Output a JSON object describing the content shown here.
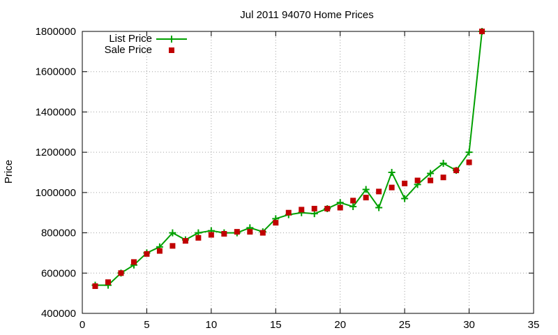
{
  "chart_data": {
    "type": "line",
    "title": "Jul 2011 94070 Home Prices",
    "xlabel": "",
    "ylabel": "Price",
    "xlim": [
      0,
      35
    ],
    "ylim": [
      400000,
      1800000
    ],
    "xticks": [
      0,
      5,
      10,
      15,
      20,
      25,
      30,
      35
    ],
    "yticks": [
      400000,
      600000,
      800000,
      1000000,
      1200000,
      1400000,
      1600000,
      1800000
    ],
    "grid": true,
    "legend": "top-left",
    "series": [
      {
        "name": "List Price",
        "style": "line-plus",
        "color": "#00a000",
        "x": [
          1,
          2,
          3,
          4,
          5,
          6,
          7,
          8,
          9,
          10,
          11,
          12,
          13,
          14,
          15,
          16,
          17,
          18,
          19,
          20,
          21,
          22,
          23,
          24,
          25,
          26,
          27,
          28,
          29,
          30,
          31
        ],
        "y": [
          540000,
          540000,
          600000,
          640000,
          700000,
          730000,
          800000,
          765000,
          800000,
          810000,
          800000,
          800000,
          825000,
          805000,
          870000,
          890000,
          900000,
          895000,
          920000,
          950000,
          930000,
          1015000,
          925000,
          1100000,
          970000,
          1040000,
          1095000,
          1145000,
          1110000,
          1200000,
          1800000
        ]
      },
      {
        "name": "Sale Price",
        "style": "square",
        "color": "#c00000",
        "x": [
          1,
          2,
          3,
          4,
          5,
          6,
          7,
          8,
          9,
          10,
          11,
          12,
          13,
          14,
          15,
          16,
          17,
          18,
          19,
          20,
          21,
          22,
          23,
          24,
          25,
          26,
          27,
          28,
          29,
          30,
          31
        ],
        "y": [
          535000,
          555000,
          600000,
          655000,
          695000,
          710000,
          735000,
          760000,
          775000,
          790000,
          795000,
          805000,
          805000,
          800000,
          850000,
          900000,
          915000,
          920000,
          920000,
          925000,
          960000,
          975000,
          1005000,
          1025000,
          1045000,
          1060000,
          1060000,
          1075000,
          1110000,
          1150000,
          1800000
        ]
      }
    ]
  }
}
